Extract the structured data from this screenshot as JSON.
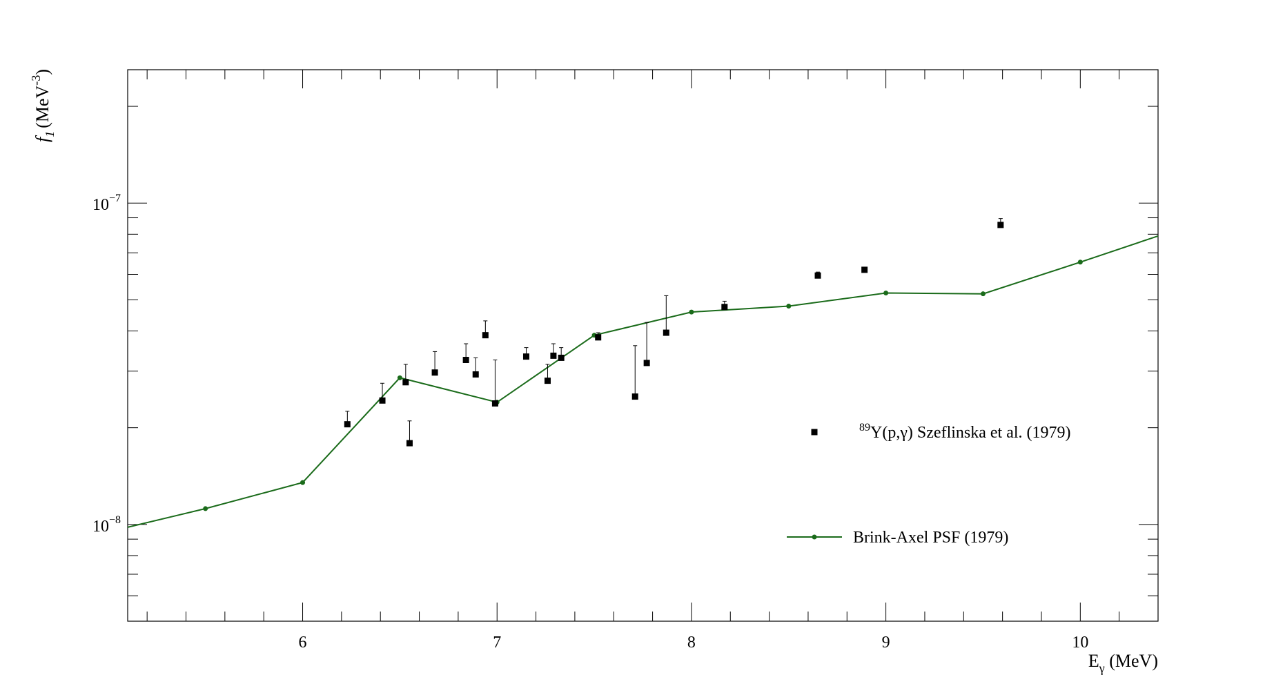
{
  "chart_data": {
    "type": "scatter",
    "xlabel": {
      "base": "E",
      "sub": "γ",
      "rest": " (MeV)"
    },
    "ylabel": {
      "f": "f",
      "sub": "1",
      "unit": "(MeV",
      "sup": "-3",
      "close": ")"
    },
    "xlim": [
      5.1,
      10.4
    ],
    "ylim": [
      5e-09,
      2.6e-07
    ],
    "yscale": "log",
    "x_ticks": [
      "6",
      "7",
      "8",
      "9",
      "10"
    ],
    "y_ticks": [
      {
        "value": 1e-07,
        "base": "10",
        "exp": "−7"
      },
      {
        "value": 1e-08,
        "base": "10",
        "exp": "−8"
      }
    ],
    "grid": false,
    "legend_position": "center-right",
    "series": [
      {
        "name": {
          "sup": "89",
          "text": "Y(p,γ) Szeflinska et al. (1979)"
        },
        "kind": "markers-with-error-bars",
        "color": "#000000",
        "points": [
          {
            "x": 6.23,
            "y": 2.05e-08,
            "err_up": 2.25e-08
          },
          {
            "x": 6.41,
            "y": 2.43e-08,
            "err_up": 2.75e-08
          },
          {
            "x": 6.53,
            "y": 2.77e-08,
            "err_up": 3.15e-08
          },
          {
            "x": 6.55,
            "y": 1.79e-08,
            "err_up": 2.1e-08
          },
          {
            "x": 6.68,
            "y": 2.97e-08,
            "err_up": 3.45e-08
          },
          {
            "x": 6.84,
            "y": 3.25e-08,
            "err_up": 3.65e-08
          },
          {
            "x": 6.89,
            "y": 2.93e-08,
            "err_up": 3.3e-08
          },
          {
            "x": 6.94,
            "y": 3.88e-08,
            "err_up": 4.3e-08
          },
          {
            "x": 6.99,
            "y": 2.38e-08,
            "err_up": 3.25e-08
          },
          {
            "x": 7.15,
            "y": 3.33e-08,
            "err_up": 3.55e-08
          },
          {
            "x": 7.26,
            "y": 2.8e-08,
            "err_up": 3.15e-08
          },
          {
            "x": 7.29,
            "y": 3.35e-08,
            "err_up": 3.65e-08
          },
          {
            "x": 7.33,
            "y": 3.3e-08,
            "err_up": 3.55e-08
          },
          {
            "x": 7.52,
            "y": 3.82e-08,
            "err_up": 3.95e-08
          },
          {
            "x": 7.71,
            "y": 2.5e-08,
            "err_up": 3.6e-08
          },
          {
            "x": 7.77,
            "y": 3.18e-08,
            "err_up": 4.25e-08
          },
          {
            "x": 7.87,
            "y": 3.95e-08,
            "err_up": 5.15e-08
          },
          {
            "x": 8.17,
            "y": 4.75e-08,
            "err_up": 4.95e-08
          },
          {
            "x": 8.65,
            "y": 5.95e-08,
            "err_up": 6.1e-08
          },
          {
            "x": 8.89,
            "y": 6.2e-08,
            "err_up": 6.3e-08
          },
          {
            "x": 9.59,
            "y": 8.55e-08,
            "err_up": 8.95e-08
          }
        ]
      },
      {
        "name": {
          "sup": "",
          "text": "Brink-Axel PSF (1979)"
        },
        "kind": "line-with-markers",
        "color": "#1a6b1a",
        "line_start": {
          "x": 5.1,
          "y": 9.8e-09
        },
        "line_end": {
          "x": 10.4,
          "y": 7.9e-08
        },
        "points": [
          {
            "x": 5.5,
            "y": 1.12e-08
          },
          {
            "x": 6.0,
            "y": 1.35e-08
          },
          {
            "x": 6.5,
            "y": 2.86e-08
          },
          {
            "x": 7.0,
            "y": 2.4e-08
          },
          {
            "x": 7.5,
            "y": 3.88e-08
          },
          {
            "x": 8.0,
            "y": 4.58e-08
          },
          {
            "x": 8.5,
            "y": 4.78e-08
          },
          {
            "x": 9.0,
            "y": 5.25e-08
          },
          {
            "x": 9.5,
            "y": 5.22e-08
          },
          {
            "x": 10.0,
            "y": 6.55e-08
          }
        ]
      }
    ]
  }
}
